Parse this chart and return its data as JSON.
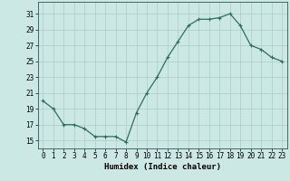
{
  "x": [
    0,
    1,
    2,
    3,
    4,
    5,
    6,
    7,
    8,
    9,
    10,
    11,
    12,
    13,
    14,
    15,
    16,
    17,
    18,
    19,
    20,
    21,
    22,
    23
  ],
  "y": [
    20,
    19,
    17,
    17,
    16.5,
    15.5,
    15.5,
    15.5,
    14.8,
    18.5,
    21,
    23,
    25.5,
    27.5,
    29.5,
    30.3,
    30.3,
    30.5,
    31,
    29.5,
    27,
    26.5,
    25.5,
    25
  ],
  "line_color": "#2d6e5e",
  "bg_color": "#cce8e4",
  "grid_color": "#aaccc8",
  "xlabel": "Humidex (Indice chaleur)",
  "yticks": [
    15,
    17,
    19,
    21,
    23,
    25,
    27,
    29,
    31
  ],
  "xticks": [
    0,
    1,
    2,
    3,
    4,
    5,
    6,
    7,
    8,
    9,
    10,
    11,
    12,
    13,
    14,
    15,
    16,
    17,
    18,
    19,
    20,
    21,
    22,
    23
  ],
  "ylim": [
    14.0,
    32.5
  ],
  "xlim": [
    -0.5,
    23.5
  ],
  "marker": "+",
  "markersize": 3.5,
  "linewidth": 0.9,
  "xlabel_fontsize": 6.5,
  "tick_fontsize": 5.5
}
